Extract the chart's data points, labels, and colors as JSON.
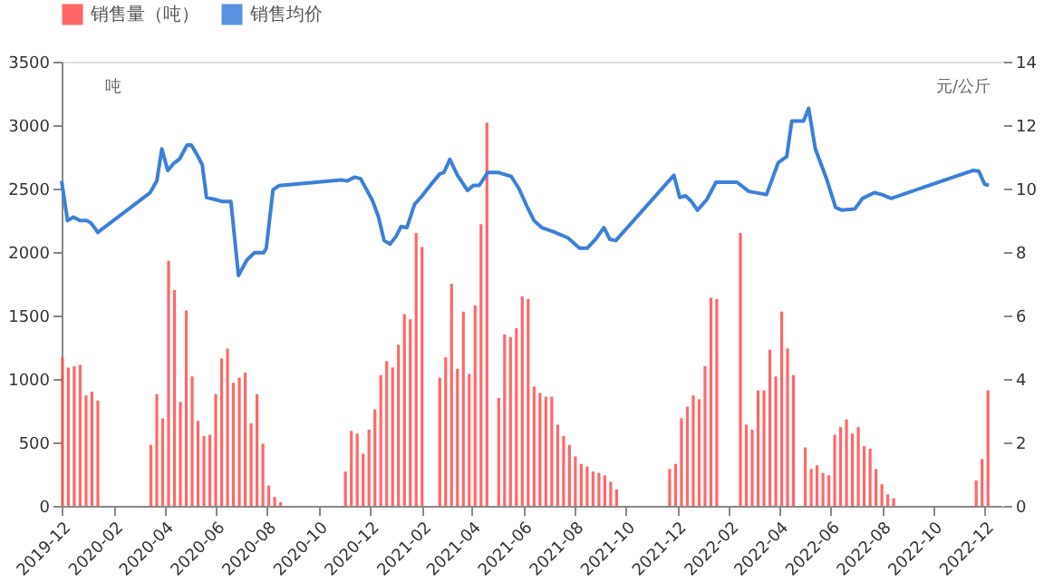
{
  "chart_data": {
    "type": "bar",
    "ylabel": "吨",
    "y2label": "元/公斤",
    "legend": "top",
    "grid": false,
    "xlim": [
      "2019-12-01",
      "2022-12-22"
    ],
    "xticks": [
      {
        "value": "2019-12",
        "label": "2019-12"
      },
      {
        "value": "2020-02",
        "label": "2020-02"
      },
      {
        "value": "2020-04",
        "label": "2020-04"
      },
      {
        "value": "2020-06",
        "label": "2020-06"
      },
      {
        "value": "2020-08",
        "label": "2020-08"
      },
      {
        "value": "2020-10",
        "label": "2020-10"
      },
      {
        "value": "2020-12",
        "label": "2020-12"
      },
      {
        "value": "2021-02",
        "label": "2021-02"
      },
      {
        "value": "2021-04",
        "label": "2021-04"
      },
      {
        "value": "2021-06",
        "label": "2021-06"
      },
      {
        "value": "2021-08",
        "label": "2021-08"
      },
      {
        "value": "2021-10",
        "label": "2021-10"
      },
      {
        "value": "2021-12",
        "label": "2021-12"
      },
      {
        "value": "2022-02",
        "label": "2022-02"
      },
      {
        "value": "2022-04",
        "label": "2022-04"
      },
      {
        "value": "2022-06",
        "label": "2022-06"
      },
      {
        "value": "2022-08",
        "label": "2022-08"
      },
      {
        "value": "2022-10",
        "label": "2022-10"
      },
      {
        "value": "2022-12",
        "label": "2022-12"
      }
    ],
    "ylim": [
      0,
      3500
    ],
    "yticks": [
      0,
      500,
      1000,
      1500,
      2000,
      2500,
      3000,
      3500
    ],
    "y2lim": [
      0,
      14
    ],
    "y2ticks": [
      0,
      2,
      4,
      6,
      8,
      10,
      12,
      14
    ],
    "series": [
      {
        "name": "销售量（吨）",
        "color": "#ff4d4d",
        "x": [
          "2019-12-02",
          "2019-12-09",
          "2019-12-16",
          "2019-12-23",
          "2019-12-30",
          "2020-01-06",
          "2020-01-13",
          "2020-03-16",
          "2020-03-23",
          "2020-03-30",
          "2020-04-06",
          "2020-04-13",
          "2020-04-20",
          "2020-04-27",
          "2020-05-04",
          "2020-05-11",
          "2020-05-18",
          "2020-05-25",
          "2020-06-01",
          "2020-06-08",
          "2020-06-15",
          "2020-06-22",
          "2020-06-29",
          "2020-07-06",
          "2020-07-13",
          "2020-07-20",
          "2020-07-27",
          "2020-08-03",
          "2020-08-10",
          "2020-08-17",
          "2020-11-02",
          "2020-11-09",
          "2020-11-16",
          "2020-11-23",
          "2020-11-30",
          "2020-12-07",
          "2020-12-14",
          "2020-12-21",
          "2020-12-28",
          "2021-01-04",
          "2021-01-11",
          "2021-01-18",
          "2021-01-25",
          "2021-02-01",
          "2021-02-22",
          "2021-03-01",
          "2021-03-08",
          "2021-03-15",
          "2021-03-22",
          "2021-03-29",
          "2021-04-05",
          "2021-04-12",
          "2021-04-19",
          "2021-05-03",
          "2021-05-10",
          "2021-05-17",
          "2021-05-24",
          "2021-05-31",
          "2021-06-07",
          "2021-06-14",
          "2021-06-21",
          "2021-06-28",
          "2021-07-05",
          "2021-07-12",
          "2021-07-19",
          "2021-07-26",
          "2021-08-02",
          "2021-08-09",
          "2021-08-16",
          "2021-08-23",
          "2021-08-30",
          "2021-09-06",
          "2021-09-13",
          "2021-09-20",
          "2021-11-22",
          "2021-11-29",
          "2021-12-06",
          "2021-12-13",
          "2021-12-20",
          "2021-12-27",
          "2022-01-03",
          "2022-01-10",
          "2022-01-17",
          "2022-02-14",
          "2022-02-21",
          "2022-02-28",
          "2022-03-07",
          "2022-03-14",
          "2022-03-21",
          "2022-03-28",
          "2022-04-04",
          "2022-04-11",
          "2022-04-18",
          "2022-05-02",
          "2022-05-09",
          "2022-05-16",
          "2022-05-23",
          "2022-05-30",
          "2022-06-06",
          "2022-06-13",
          "2022-06-20",
          "2022-06-27",
          "2022-07-04",
          "2022-07-11",
          "2022-07-18",
          "2022-07-25",
          "2022-08-01",
          "2022-08-08",
          "2022-08-15",
          "2022-11-21",
          "2022-11-28",
          "2022-12-05"
        ],
        "values": [
          1170,
          1090,
          1100,
          1110,
          870,
          900,
          830,
          480,
          880,
          690,
          1930,
          1700,
          820,
          1540,
          1020,
          670,
          550,
          560,
          880,
          1160,
          1240,
          970,
          1010,
          1050,
          650,
          880,
          490,
          160,
          70,
          30,
          270,
          590,
          570,
          410,
          600,
          760,
          1030,
          1140,
          1090,
          1270,
          1510,
          1470,
          2150,
          2040,
          1010,
          1170,
          1750,
          1080,
          1530,
          1040,
          1580,
          2220,
          3020,
          850,
          1350,
          1330,
          1400,
          1650,
          1630,
          940,
          890,
          860,
          860,
          640,
          550,
          480,
          390,
          330,
          310,
          270,
          260,
          240,
          190,
          130,
          290,
          330,
          690,
          780,
          870,
          840,
          1100,
          1640,
          1630,
          2150,
          640,
          600,
          910,
          910,
          1230,
          1020,
          1530,
          1240,
          1030,
          460,
          290,
          320,
          260,
          240,
          560,
          620,
          680,
          570,
          620,
          470,
          450,
          290,
          170,
          90,
          60,
          200,
          370,
          910
        ]
      },
      {
        "name": "销售均价",
        "type": "line",
        "axis": "y2",
        "color": "#3d7fd9",
        "line_style": "solid",
        "marker": "none",
        "x": [
          "2019-12-01",
          "2019-12-08",
          "2019-12-15",
          "2019-12-23",
          "2019-12-31",
          "2020-01-05",
          "2020-01-13",
          "2020-03-15",
          "2020-03-23",
          "2020-03-29",
          "2020-04-05",
          "2020-04-12",
          "2020-04-19",
          "2020-04-28",
          "2020-05-03",
          "2020-05-10",
          "2020-05-16",
          "2020-05-21",
          "2020-06-01",
          "2020-06-09",
          "2020-06-19",
          "2020-06-28",
          "2020-07-08",
          "2020-07-17",
          "2020-07-28",
          "2020-07-31",
          "2020-08-08",
          "2020-08-15",
          "2020-10-28",
          "2020-11-04",
          "2020-11-13",
          "2020-11-20",
          "2020-12-04",
          "2020-12-11",
          "2020-12-18",
          "2020-12-25",
          "2021-01-01",
          "2021-01-07",
          "2021-01-14",
          "2021-01-23",
          "2021-02-01",
          "2021-02-12",
          "2021-02-22",
          "2021-02-27",
          "2021-03-06",
          "2021-03-15",
          "2021-03-27",
          "2021-04-03",
          "2021-04-10",
          "2021-04-20",
          "2021-05-02",
          "2021-05-18",
          "2021-05-27",
          "2021-06-05",
          "2021-06-14",
          "2021-06-23",
          "2021-07-07",
          "2021-07-24",
          "2021-08-07",
          "2021-08-16",
          "2021-08-27",
          "2021-09-05",
          "2021-09-12",
          "2021-09-19",
          "2021-11-27",
          "2021-12-04",
          "2021-12-11",
          "2021-12-18",
          "2021-12-25",
          "2022-01-05",
          "2022-01-16",
          "2022-02-10",
          "2022-02-24",
          "2022-03-17",
          "2022-03-31",
          "2022-04-10",
          "2022-04-16",
          "2022-04-30",
          "2022-05-06",
          "2022-05-14",
          "2022-05-27",
          "2022-06-07",
          "2022-06-14",
          "2022-06-30",
          "2022-07-09",
          "2022-07-23",
          "2022-08-01",
          "2022-08-12",
          "2022-11-17",
          "2022-11-24",
          "2022-12-01",
          "2022-12-06"
        ],
        "values": [
          10.24,
          8.99,
          9.1,
          8.99,
          8.99,
          8.91,
          8.62,
          9.87,
          10.24,
          11.25,
          10.57,
          10.79,
          10.93,
          11.37,
          11.37,
          11.06,
          10.75,
          9.72,
          9.65,
          9.59,
          9.59,
          7.26,
          7.75,
          7.98,
          7.98,
          8.12,
          9.96,
          10.09,
          10.27,
          10.24,
          10.36,
          10.31,
          9.63,
          9.13,
          8.36,
          8.25,
          8.49,
          8.8,
          8.77,
          9.5,
          9.77,
          10.14,
          10.46,
          10.51,
          10.92,
          10.42,
          9.94,
          10.1,
          10.1,
          10.51,
          10.51,
          10.38,
          10.0,
          9.47,
          8.99,
          8.77,
          8.64,
          8.45,
          8.12,
          8.12,
          8.43,
          8.77,
          8.4,
          8.36,
          10.42,
          9.72,
          9.77,
          9.59,
          9.32,
          9.65,
          10.2,
          10.2,
          9.91,
          9.81,
          10.82,
          11.01,
          12.13,
          12.13,
          12.53,
          11.25,
          10.33,
          9.41,
          9.32,
          9.36,
          9.69,
          9.87,
          9.81,
          9.69,
          10.57,
          10.55,
          10.14,
          10.1
        ]
      }
    ]
  }
}
